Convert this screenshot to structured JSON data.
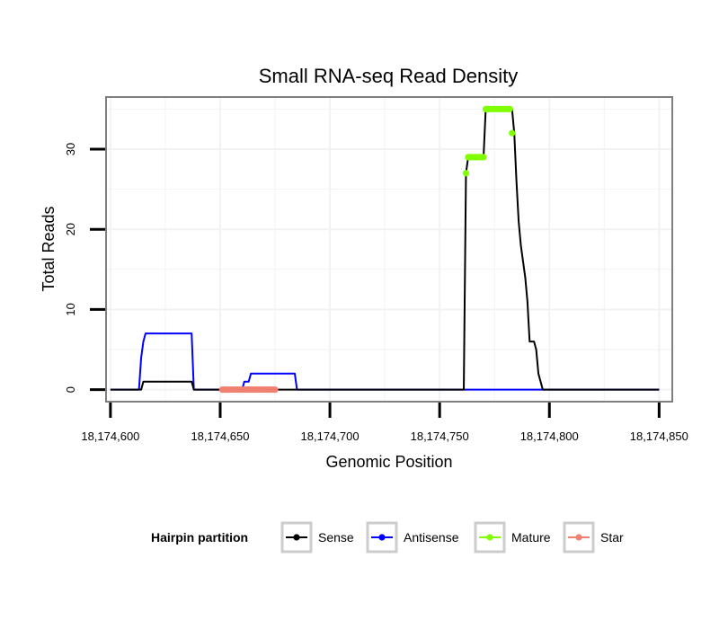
{
  "chart_data": {
    "type": "line",
    "title": "Small RNA-seq Read Density",
    "xlabel": "Genomic Position",
    "ylabel": "Total Reads",
    "xlim": [
      18174598,
      18174856
    ],
    "ylim": [
      -1.5,
      36.5
    ],
    "x_ticks": [
      18174600,
      18174650,
      18174700,
      18174750,
      18174800,
      18174850
    ],
    "x_tick_labels": [
      "18,174,600",
      "18,174,650",
      "18,174,700",
      "18,174,750",
      "18,174,800",
      "18,174,850"
    ],
    "y_ticks": [
      0,
      10,
      20,
      30
    ],
    "y_tick_labels": [
      "0",
      "10",
      "20",
      "30"
    ],
    "grid": true,
    "legend": {
      "title": "Hairpin partition",
      "position": "bottom",
      "entries": [
        "Sense",
        "Antisense",
        "Mature",
        "Star"
      ]
    },
    "series": [
      {
        "name": "Sense",
        "style": "line",
        "color": "#000000",
        "x": [
          18174600,
          18174614,
          18174615,
          18174616,
          18174637,
          18174638,
          18174761,
          18174762,
          18174763,
          18174764,
          18174765,
          18174770,
          18174771,
          18174772,
          18174783,
          18174784,
          18174785,
          18174786,
          18174787,
          18174788,
          18174789,
          18174790,
          18174791,
          18174792,
          18174793,
          18174794,
          18174795,
          18174796,
          18174797,
          18174850
        ],
        "y": [
          0,
          0,
          1,
          1,
          1,
          0,
          0,
          27,
          29,
          29,
          29,
          29,
          35,
          35,
          35,
          32,
          26,
          21,
          18,
          16,
          14,
          11,
          6,
          6,
          6,
          5,
          2,
          1,
          0,
          0
        ]
      },
      {
        "name": "Antisense",
        "style": "line",
        "color": "#0000ff",
        "x": [
          18174600,
          18174613,
          18174614,
          18174615,
          18174616,
          18174637,
          18174638,
          18174660,
          18174661,
          18174662,
          18174663,
          18174664,
          18174684,
          18174685,
          18174850
        ],
        "y": [
          0,
          0,
          4,
          6,
          7,
          7,
          0,
          0,
          1,
          1,
          1,
          2,
          2,
          0,
          0
        ]
      },
      {
        "name": "Mature",
        "style": "points",
        "color": "#7fff00",
        "x": [
          18174762,
          18174763,
          18174764,
          18174765,
          18174766,
          18174767,
          18174768,
          18174769,
          18174770,
          18174771,
          18174772,
          18174773,
          18174774,
          18174775,
          18174776,
          18174777,
          18174778,
          18174779,
          18174780,
          18174781,
          18174782,
          18174783
        ],
        "y": [
          27,
          29,
          29,
          29,
          29,
          29,
          29,
          29,
          29,
          35,
          35,
          35,
          35,
          35,
          35,
          35,
          35,
          35,
          35,
          35,
          35,
          32
        ]
      },
      {
        "name": "Star",
        "style": "points",
        "color": "#f08070",
        "x": [
          18174651,
          18174652,
          18174653,
          18174654,
          18174655,
          18174656,
          18174657,
          18174658,
          18174659,
          18174660,
          18174661,
          18174662,
          18174663,
          18174664,
          18174665,
          18174666,
          18174667,
          18174668,
          18174669,
          18174670,
          18174671,
          18174672,
          18174673,
          18174674,
          18174675
        ],
        "y": [
          0,
          0,
          0,
          0,
          0,
          0,
          0,
          0,
          0,
          0,
          0,
          0,
          0,
          0,
          0,
          0,
          0,
          0,
          0,
          0,
          0,
          0,
          0,
          0,
          0
        ]
      }
    ]
  },
  "colors": {
    "grid": "#f2f2f2",
    "panel_border": "#7f7f7f",
    "legend_key_border": "#cccccc"
  }
}
